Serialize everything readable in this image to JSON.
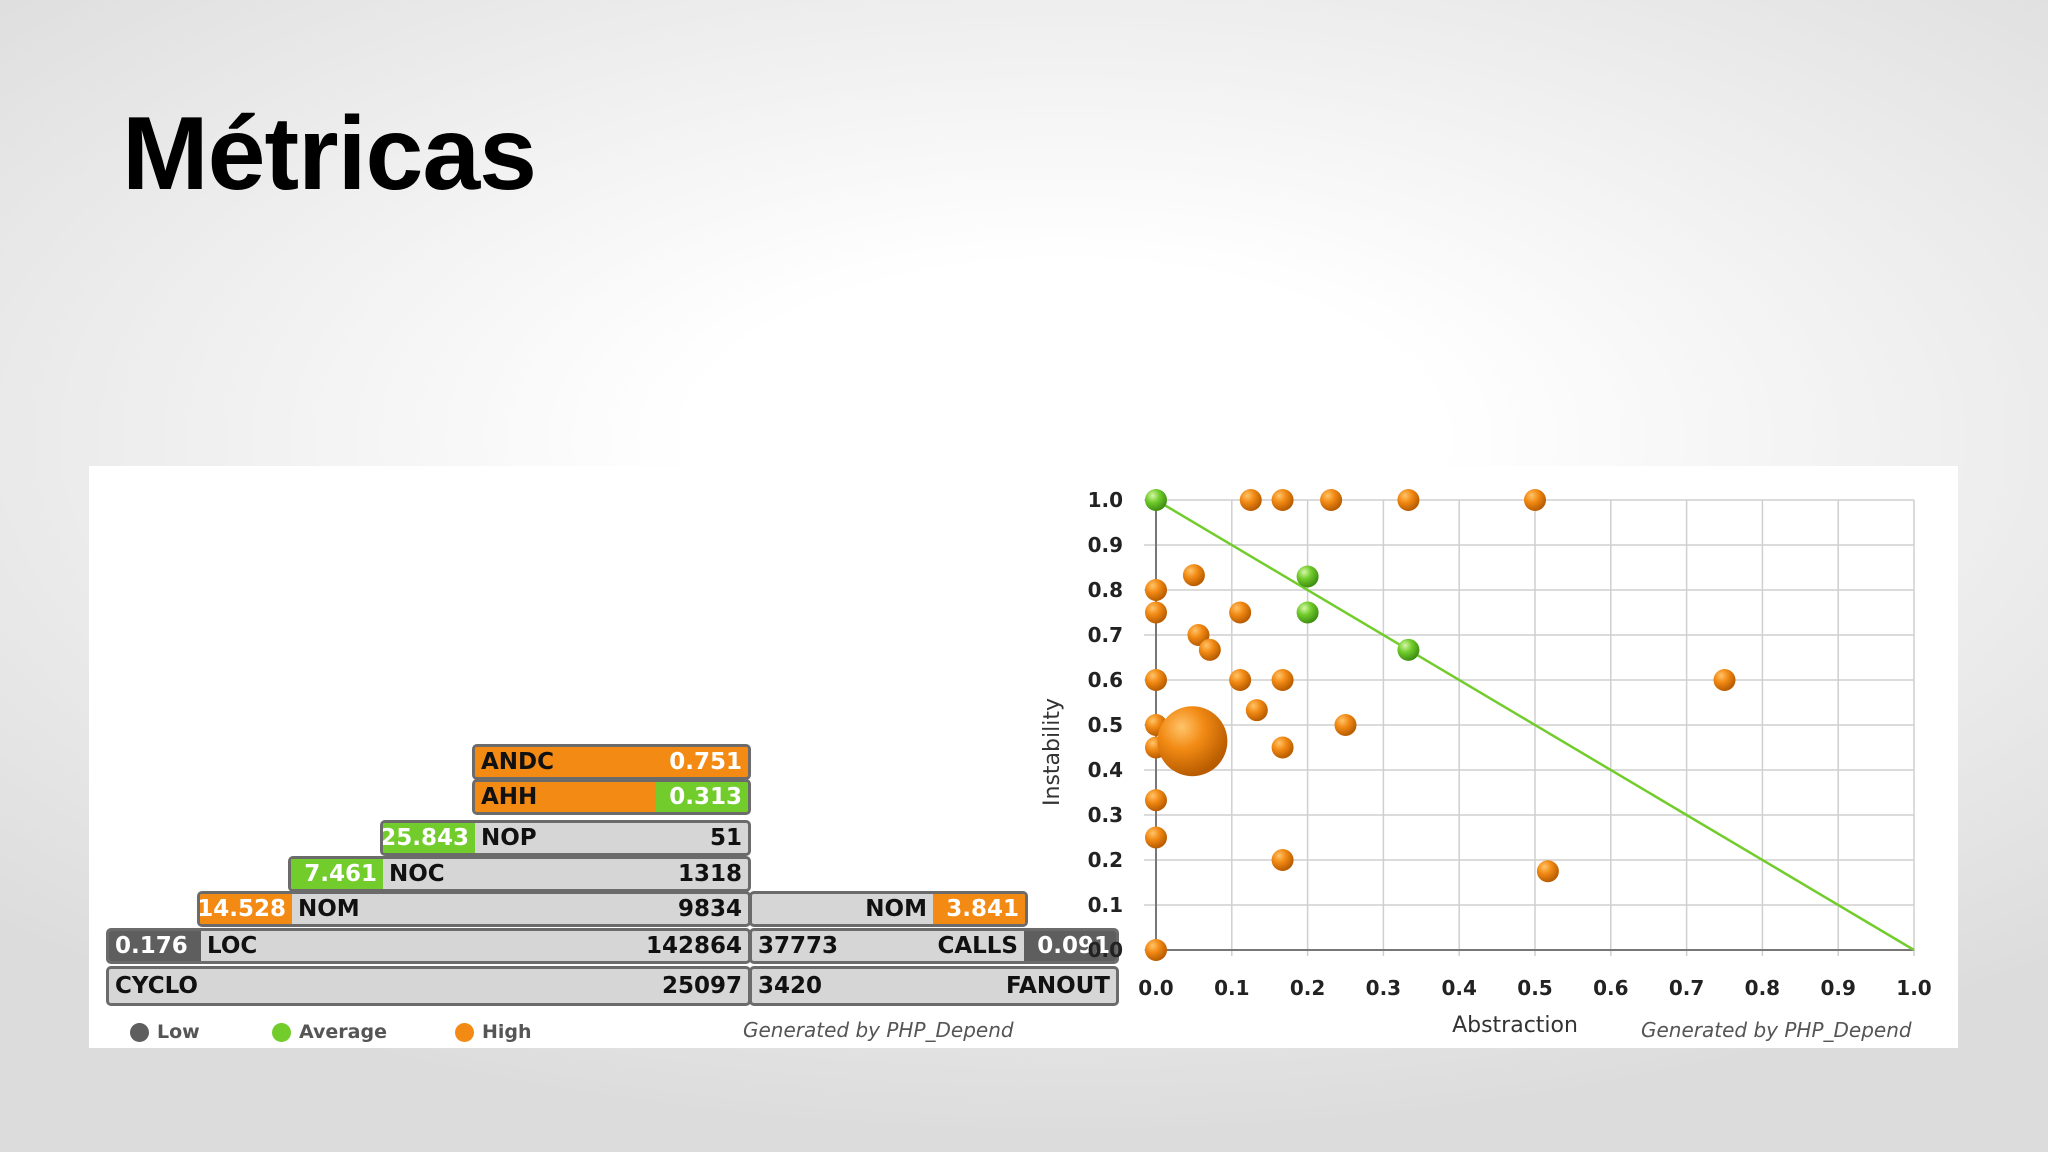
{
  "slide": {
    "title": "Métricas"
  },
  "pyramid": {
    "rows": {
      "andc": {
        "label": "ANDC",
        "value": "0.751"
      },
      "ahh": {
        "label": "AHH",
        "value": "0.313"
      },
      "nop": {
        "ratio": "25.843",
        "label": "NOP",
        "value": "51"
      },
      "noc": {
        "ratio": "7.461",
        "label": "NOC",
        "value": "1318"
      },
      "nom": {
        "ratio": "14.528",
        "label": "NOM",
        "value": "9834"
      },
      "loc": {
        "ratio": "0.176",
        "label": "LOC",
        "value": "142864"
      },
      "cyclo": {
        "label": "CYCLO",
        "value": "25097"
      },
      "nom_right": {
        "label": "NOM",
        "ratio": "3.841"
      },
      "calls": {
        "value": "37773",
        "label": "CALLS",
        "ratio": "0.091"
      },
      "fanout": {
        "value": "3420",
        "label": "FANOUT"
      }
    },
    "legend": [
      {
        "label": "Low",
        "color": "#5e5e5e"
      },
      {
        "label": "Average",
        "color": "#72cc2c"
      },
      {
        "label": "High",
        "color": "#f28a14"
      }
    ],
    "generated": "Generated by PHP_Depend"
  },
  "chart_data": {
    "type": "scatter",
    "xlabel": "Abstraction",
    "ylabel": "Instability",
    "xlim": [
      0,
      1
    ],
    "ylim": [
      0,
      1
    ],
    "x_ticks": [
      "0.0",
      "0.1",
      "0.2",
      "0.3",
      "0.4",
      "0.5",
      "0.6",
      "0.7",
      "0.8",
      "0.9",
      "1.0"
    ],
    "y_ticks": [
      "0.0",
      "0.1",
      "0.2",
      "0.3",
      "0.4",
      "0.5",
      "0.6",
      "0.7",
      "0.8",
      "0.9",
      "1.0"
    ],
    "grid": true,
    "main_sequence_line": {
      "from": [
        0,
        1
      ],
      "to": [
        1,
        0
      ],
      "color": "#72cc2c"
    },
    "colors": {
      "high": "#f28a14",
      "average": "#72cc2c"
    },
    "points": [
      {
        "x": 0.0,
        "y": 1.0,
        "size": "normal",
        "class": "average"
      },
      {
        "x": 0.2,
        "y": 0.83,
        "size": "normal",
        "class": "average"
      },
      {
        "x": 0.2,
        "y": 0.75,
        "size": "normal",
        "class": "average"
      },
      {
        "x": 0.333,
        "y": 0.667,
        "size": "normal",
        "class": "average"
      },
      {
        "x": 0.125,
        "y": 1.0,
        "size": "normal",
        "class": "high"
      },
      {
        "x": 0.167,
        "y": 1.0,
        "size": "normal",
        "class": "high"
      },
      {
        "x": 0.231,
        "y": 1.0,
        "size": "normal",
        "class": "high"
      },
      {
        "x": 0.333,
        "y": 1.0,
        "size": "normal",
        "class": "high"
      },
      {
        "x": 0.5,
        "y": 1.0,
        "size": "normal",
        "class": "high"
      },
      {
        "x": 0.05,
        "y": 0.833,
        "size": "normal",
        "class": "high"
      },
      {
        "x": 0.0,
        "y": 0.8,
        "size": "normal",
        "class": "high"
      },
      {
        "x": 0.0,
        "y": 0.75,
        "size": "normal",
        "class": "high"
      },
      {
        "x": 0.111,
        "y": 0.75,
        "size": "normal",
        "class": "high"
      },
      {
        "x": 0.056,
        "y": 0.7,
        "size": "normal",
        "class": "high"
      },
      {
        "x": 0.071,
        "y": 0.667,
        "size": "normal",
        "class": "high"
      },
      {
        "x": 0.0,
        "y": 0.6,
        "size": "normal",
        "class": "high"
      },
      {
        "x": 0.111,
        "y": 0.6,
        "size": "normal",
        "class": "high"
      },
      {
        "x": 0.167,
        "y": 0.6,
        "size": "normal",
        "class": "high"
      },
      {
        "x": 0.133,
        "y": 0.533,
        "size": "normal",
        "class": "high"
      },
      {
        "x": 0.25,
        "y": 0.5,
        "size": "normal",
        "class": "high"
      },
      {
        "x": 0.0,
        "y": 0.5,
        "size": "normal",
        "class": "high"
      },
      {
        "x": 0.0,
        "y": 0.45,
        "size": "normal",
        "class": "high"
      },
      {
        "x": 0.048,
        "y": 0.464,
        "size": "large",
        "class": "high"
      },
      {
        "x": 0.167,
        "y": 0.45,
        "size": "normal",
        "class": "high"
      },
      {
        "x": 0.0,
        "y": 0.333,
        "size": "normal",
        "class": "high"
      },
      {
        "x": 0.0,
        "y": 0.25,
        "size": "normal",
        "class": "high"
      },
      {
        "x": 0.167,
        "y": 0.2,
        "size": "normal",
        "class": "high"
      },
      {
        "x": 0.75,
        "y": 0.6,
        "size": "normal",
        "class": "high"
      },
      {
        "x": 0.517,
        "y": 0.175,
        "size": "normal",
        "class": "high"
      },
      {
        "x": 0.0,
        "y": 0.0,
        "size": "normal",
        "class": "high"
      }
    ]
  }
}
